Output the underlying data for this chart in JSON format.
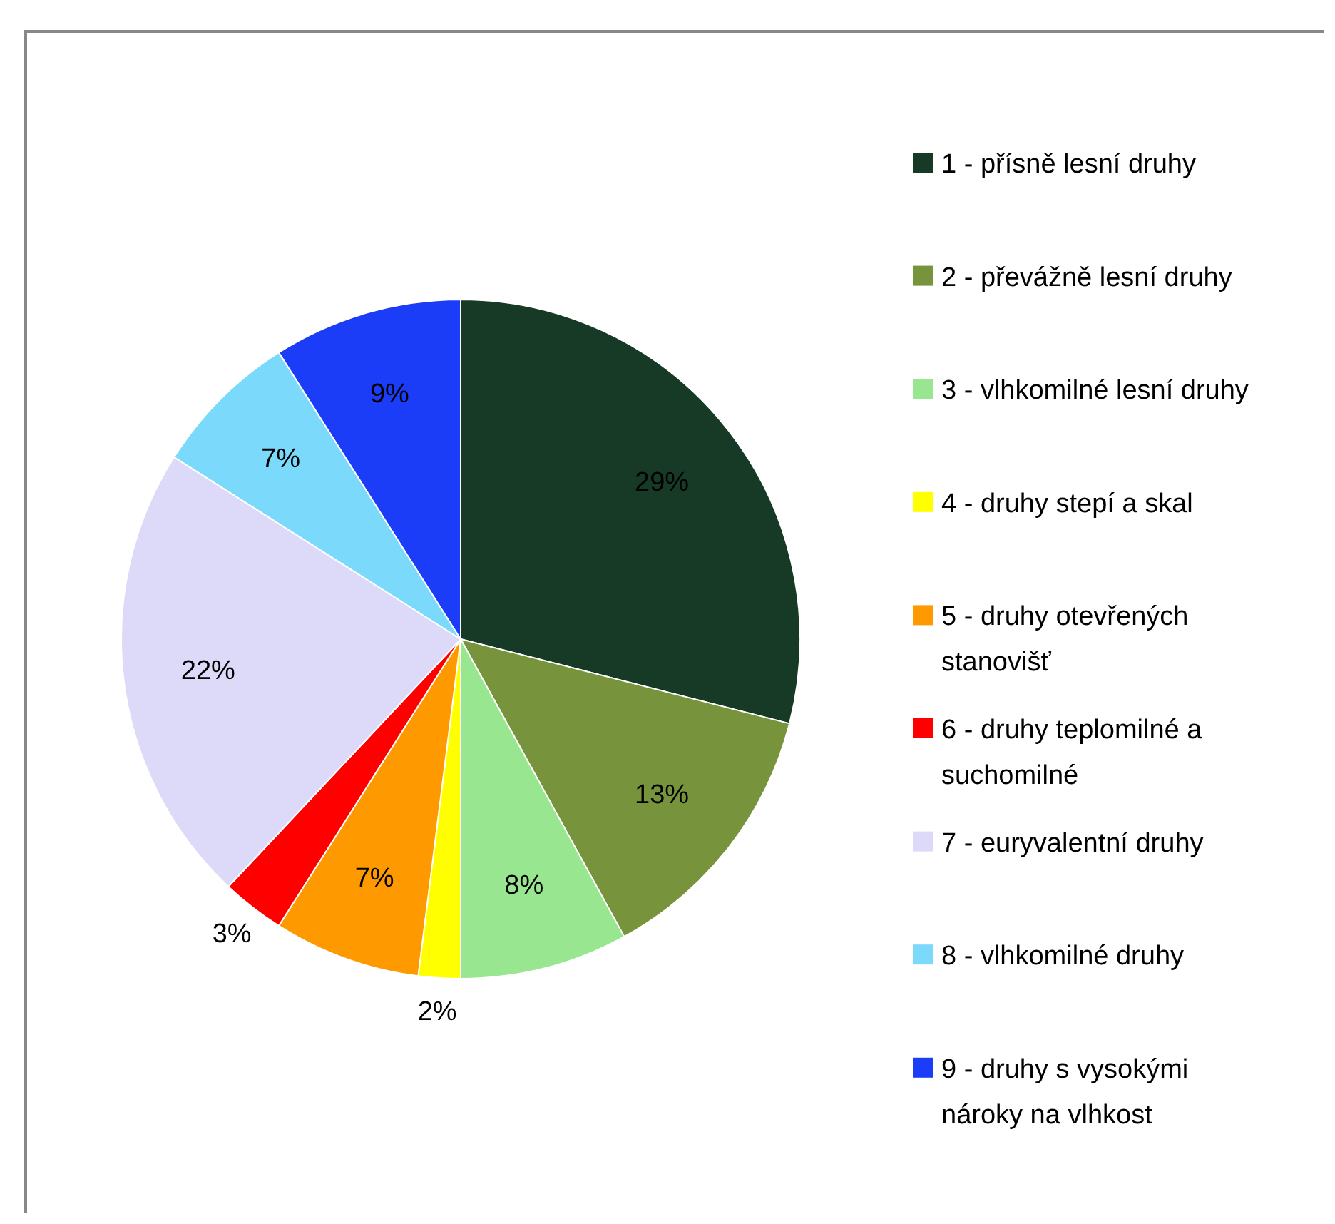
{
  "chart_data": {
    "type": "pie",
    "categories": [
      "1 - přísně lesní druhy",
      "2 - převážně lesní druhy",
      "3 - vlhkomilné lesní druhy",
      "4 - druhy stepí a skal",
      "5 - druhy otevřených stanovišť",
      "6 - druhy teplomilné a suchomilné",
      "7 - euryvalentní druhy",
      "8 - vlhkomilné druhy",
      "9 - druhy s vysokými nároky na vlhkost"
    ],
    "values": [
      29,
      13,
      8,
      2,
      7,
      3,
      22,
      7,
      9
    ],
    "value_labels": [
      "29%",
      "13%",
      "8%",
      "2%",
      "7%",
      "3%",
      "22%",
      "7%",
      "9%"
    ],
    "colors": [
      "#173a26",
      "#77933c",
      "#98e68f",
      "#ffff00",
      "#ff9900",
      "#ff0000",
      "#dcdaf8",
      "#7bd9fb",
      "#1c3df7"
    ],
    "legend": "right"
  }
}
